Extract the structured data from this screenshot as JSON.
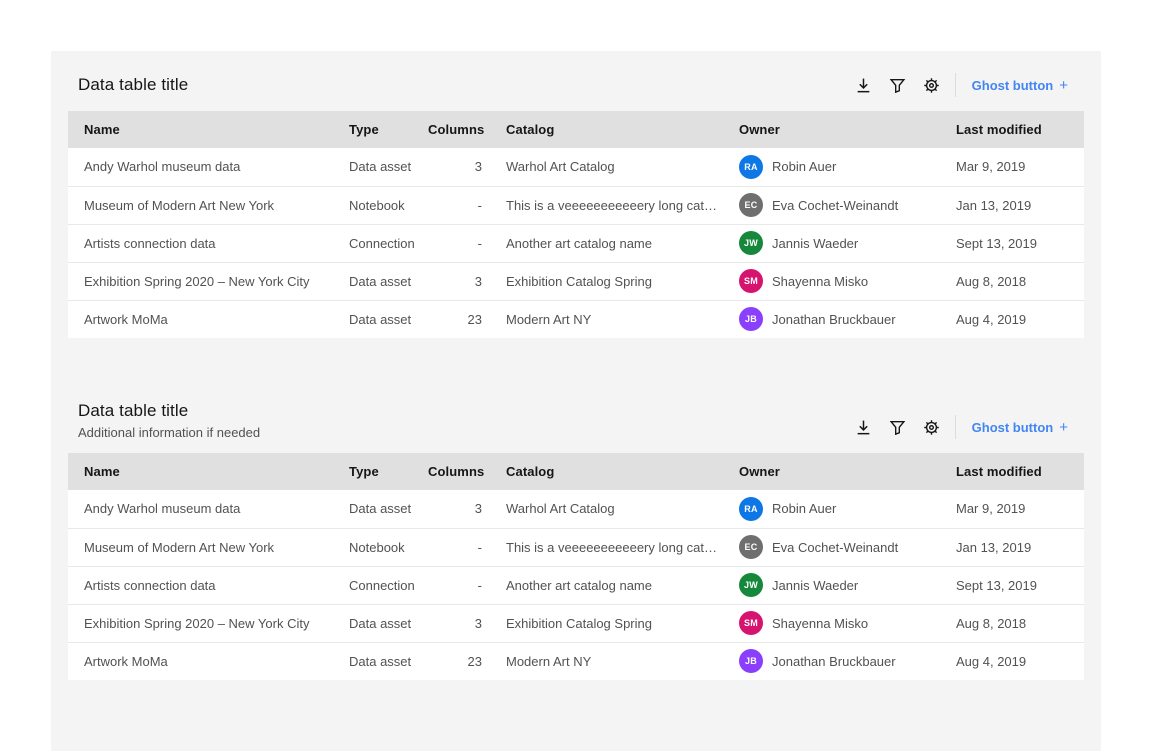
{
  "tables": [
    {
      "title": "Data table title",
      "subtitle": ""
    },
    {
      "title": "Data table title",
      "subtitle": "Additional information if needed"
    }
  ],
  "toolbar": {
    "download_icon": "download-icon",
    "filter_icon": "filter-icon",
    "settings_icon": "gear-icon",
    "ghost_label": "Ghost button",
    "ghost_plus": "+"
  },
  "columns": [
    "Name",
    "Type",
    "Columns",
    "Catalog",
    "Owner",
    "Last modified"
  ],
  "rows": [
    {
      "name": "Andy Warhol museum data",
      "type": "Data asset",
      "columns": "3",
      "catalog": "Warhol Art Catalog",
      "owner": {
        "initials": "RA",
        "name": "Robin Auer",
        "color": "#0d77e5"
      },
      "modified": "Mar 9, 2019"
    },
    {
      "name": "Museum of Modern Art New York",
      "type": "Notebook",
      "columns": "-",
      "catalog": "This is a veeeeeeeeeeery long catalog n...",
      "owner": {
        "initials": "EC",
        "name": "Eva Cochet-Weinandt",
        "color": "#6f6f6f"
      },
      "modified": "Jan 13, 2019"
    },
    {
      "name": "Artists connection data",
      "type": "Connection",
      "columns": "-",
      "catalog": "Another art catalog name",
      "owner": {
        "initials": "JW",
        "name": "Jannis Waeder",
        "color": "#15883b"
      },
      "modified": "Sept 13, 2019"
    },
    {
      "name": "Exhibition Spring 2020 – New York City",
      "type": "Data asset",
      "columns": "3",
      "catalog": "Exhibition Catalog Spring",
      "owner": {
        "initials": "SM",
        "name": "Shayenna Misko",
        "color": "#d6136e"
      },
      "modified": "Aug 8, 2018"
    },
    {
      "name": "Artwork MoMa",
      "type": "Data asset",
      "columns": "23",
      "catalog": "Modern Art NY",
      "owner": {
        "initials": "JB",
        "name": "Jonathan Bruckbauer",
        "color": "#8a3ffc"
      },
      "modified": "Aug 4, 2019"
    }
  ],
  "colors": {
    "card_bg": "#f4f4f4",
    "header_bg": "#e0e0e0",
    "row_bg": "#ffffff",
    "header_text": "#161616",
    "cell_text": "#525252",
    "ghost_blue": "#4285f4"
  }
}
